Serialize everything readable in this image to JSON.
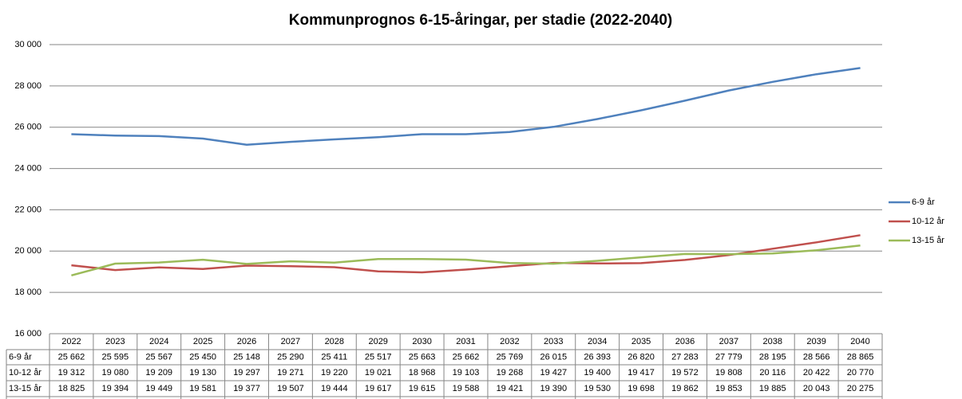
{
  "chart_data": {
    "type": "line",
    "title": "Kommunprognos 6-15-åringar, per stadie (2022-2040)",
    "categories": [
      "2022",
      "2023",
      "2024",
      "2025",
      "2026",
      "2027",
      "2028",
      "2029",
      "2030",
      "2031",
      "2032",
      "2033",
      "2034",
      "2035",
      "2036",
      "2037",
      "2038",
      "2039",
      "2040"
    ],
    "series": [
      {
        "name": "6-9 år",
        "color": "#4f81bd",
        "values": [
          25662,
          25595,
          25567,
          25450,
          25148,
          25290,
          25411,
          25517,
          25663,
          25662,
          25769,
          26015,
          26393,
          26820,
          27283,
          27779,
          28195,
          28566,
          28865
        ],
        "value_labels": [
          "25 662",
          "25 595",
          "25 567",
          "25 450",
          "25 148",
          "25 290",
          "25 411",
          "25 517",
          "25 663",
          "25 662",
          "25 769",
          "26 015",
          "26 393",
          "26 820",
          "27 283",
          "27 779",
          "28 195",
          "28 566",
          "28 865"
        ]
      },
      {
        "name": "10-12 år",
        "color": "#c0504d",
        "values": [
          19312,
          19080,
          19209,
          19130,
          19297,
          19271,
          19220,
          19021,
          18968,
          19103,
          19268,
          19427,
          19400,
          19417,
          19572,
          19808,
          20116,
          20422,
          20770
        ],
        "value_labels": [
          "19 312",
          "19 080",
          "19 209",
          "19 130",
          "19 297",
          "19 271",
          "19 220",
          "19 021",
          "18 968",
          "19 103",
          "19 268",
          "19 427",
          "19 400",
          "19 417",
          "19 572",
          "19 808",
          "20 116",
          "20 422",
          "20 770"
        ]
      },
      {
        "name": "13-15 år",
        "color": "#9bbb59",
        "values": [
          18825,
          19394,
          19449,
          19581,
          19377,
          19507,
          19444,
          19617,
          19615,
          19588,
          19421,
          19390,
          19530,
          19698,
          19862,
          19853,
          19885,
          20043,
          20275
        ],
        "value_labels": [
          "18 825",
          "19 394",
          "19 449",
          "19 581",
          "19 377",
          "19 507",
          "19 444",
          "19 617",
          "19 615",
          "19 588",
          "19 421",
          "19 390",
          "19 530",
          "19 698",
          "19 862",
          "19 853",
          "19 885",
          "20 043",
          "20 275"
        ]
      }
    ],
    "ylim": [
      16000,
      30000
    ],
    "yticks": [
      {
        "value": 16000,
        "label": "16 000"
      },
      {
        "value": 18000,
        "label": "18 000"
      },
      {
        "value": 20000,
        "label": "20 000"
      },
      {
        "value": 22000,
        "label": "22 000"
      },
      {
        "value": 24000,
        "label": "24 000"
      },
      {
        "value": 26000,
        "label": "26 000"
      },
      {
        "value": 28000,
        "label": "28 000"
      },
      {
        "value": 30000,
        "label": "30 000"
      }
    ],
    "grid": true,
    "legend": "right"
  }
}
